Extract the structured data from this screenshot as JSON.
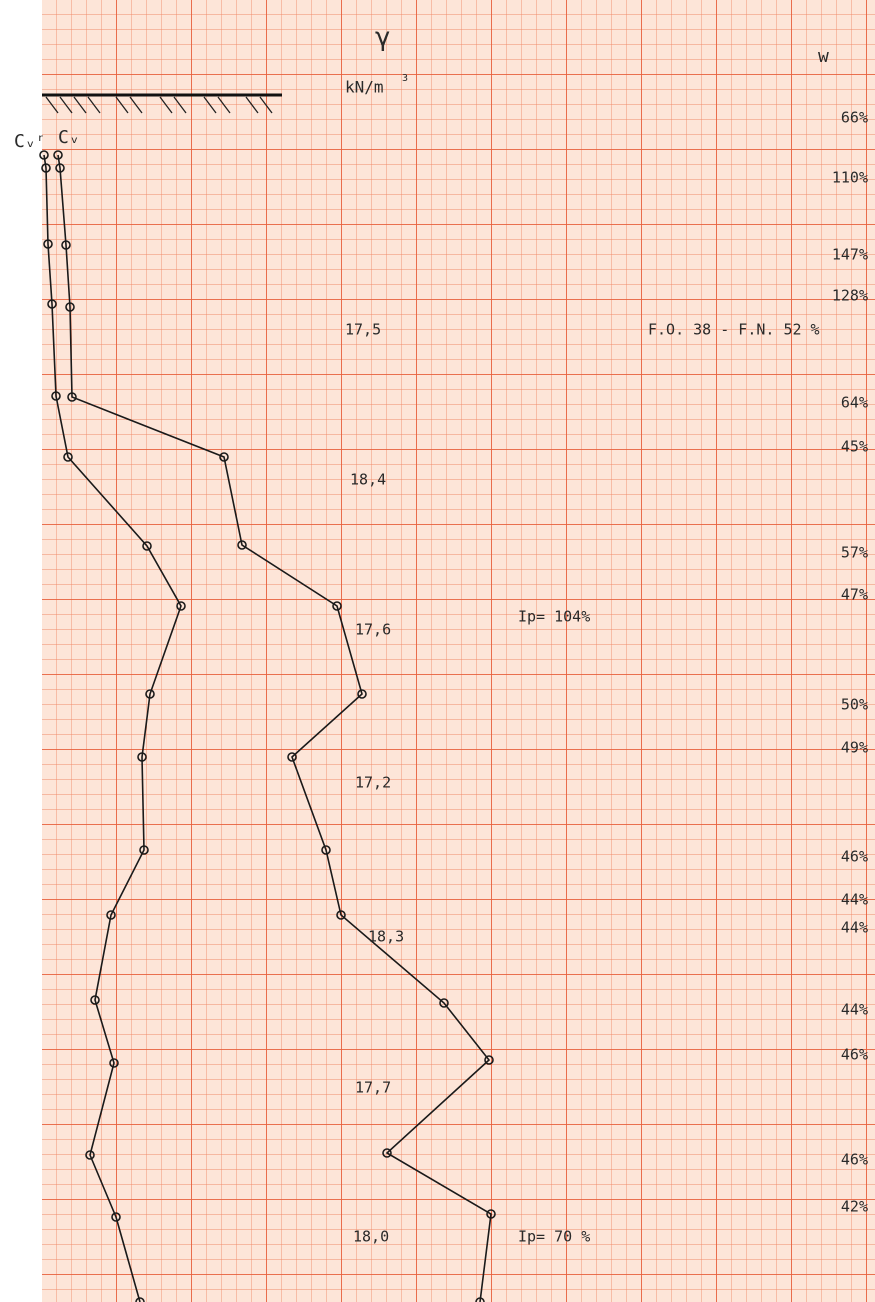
{
  "header": {
    "gamma_symbol": "γ",
    "gamma_unit": "kN/m",
    "gamma_unit_exp": "3",
    "w_symbol": "w",
    "curve_left": "Cᵥʳ",
    "curve_right": "Cᵥ"
  },
  "gamma_values": [
    "17,5",
    "18,4",
    "17,6",
    "17,2",
    "18,3",
    "17,7",
    "18,0"
  ],
  "w_values": [
    "66%",
    "110%",
    "147%",
    "128%",
    "64%",
    "45%",
    "57%",
    "47%",
    "50%",
    "49%",
    "46%",
    "44%",
    "44%",
    "44%",
    "46%",
    "46%",
    "42%"
  ],
  "annotations": [
    "F.O. 38 - F.N. 52 %",
    "Ip= 104%",
    "Ip= 70 %"
  ]
}
